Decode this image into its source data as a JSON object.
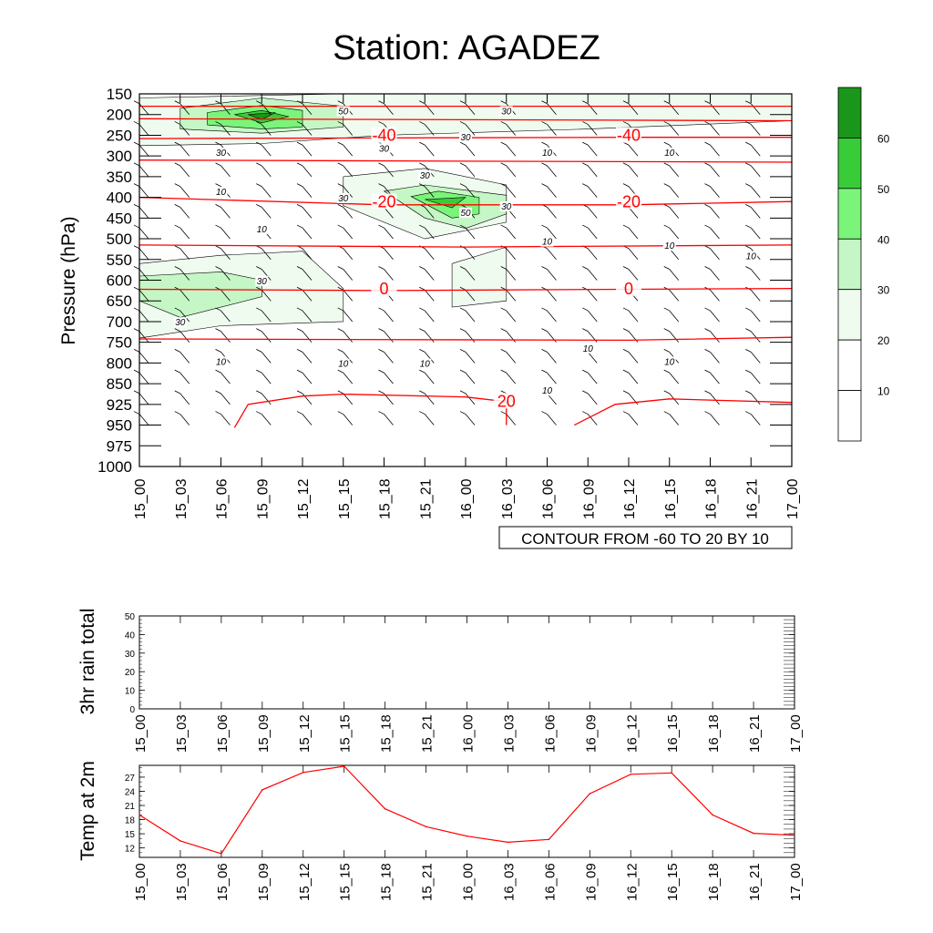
{
  "title": "Station: AGADEZ",
  "colors": {
    "shade": [
      "#ffffff",
      "#ffffff",
      "#effbef",
      "#c5f6c5",
      "#7af57a",
      "#39cc39",
      "#1a961a"
    ],
    "temp_line": "#ff0000",
    "contour_line": "#000000",
    "frame": "#000000"
  },
  "chart_data": [
    {
      "type": "contour",
      "title": "Station: AGADEZ",
      "ylabel": "Pressure (hPa)",
      "y_reversed": true,
      "y_ticks": [
        "150",
        "200",
        "250",
        "300",
        "350",
        "400",
        "450",
        "500",
        "550",
        "600",
        "650",
        "700",
        "750",
        "800",
        "850",
        "925",
        "950",
        "975",
        "1000"
      ],
      "x_ticks": [
        "15_00",
        "15_03",
        "15_06",
        "15_09",
        "15_12",
        "15_15",
        "15_18",
        "15_21",
        "16_00",
        "16_03",
        "16_06",
        "16_09",
        "16_12",
        "16_15",
        "16_18",
        "16_21",
        "17_00"
      ],
      "info_label": "CONTOUR FROM -60 TO 20 BY 10",
      "temperature_contour_labels": [
        {
          "value": "-40",
          "x": "15_18",
          "p": 255
        },
        {
          "value": "-40",
          "x": "16_12",
          "p": 255
        },
        {
          "value": "-20",
          "x": "15_18",
          "p": 415
        },
        {
          "value": "-20",
          "x": "16_12",
          "p": 415
        },
        {
          "value": "0",
          "x": "15_18",
          "p": 625
        },
        {
          "value": "0",
          "x": "16_12",
          "p": 625
        },
        {
          "value": "20",
          "x": "16_03",
          "p": 920
        }
      ],
      "temperature_isotherms": [
        {
          "value": -50,
          "points": [
            [
              "15_00",
              180
            ],
            [
              "17_00",
              180
            ]
          ]
        },
        {
          "value": -45,
          "points": [
            [
              "15_00",
              210
            ],
            [
              "17_00",
              215
            ]
          ]
        },
        {
          "value": -40,
          "points": [
            [
              "15_00",
              258
            ],
            [
              "16_12",
              255
            ],
            [
              "17_00",
              255
            ]
          ]
        },
        {
          "value": -30,
          "points": [
            [
              "15_00",
              310
            ],
            [
              "17_00",
              315
            ]
          ]
        },
        {
          "value": -20,
          "points": [
            [
              "15_00",
              400
            ],
            [
              "15_18",
              418
            ],
            [
              "16_12",
              418
            ],
            [
              "17_00",
              410
            ]
          ]
        },
        {
          "value": -10,
          "points": [
            [
              "15_00",
              515
            ],
            [
              "16_00",
              520
            ],
            [
              "17_00",
              515
            ]
          ]
        },
        {
          "value": 0,
          "points": [
            [
              "15_00",
              622
            ],
            [
              "15_18",
              625
            ],
            [
              "16_12",
              622
            ],
            [
              "17_00",
              620
            ]
          ]
        },
        {
          "value": 10,
          "points": [
            [
              "15_00",
              742
            ],
            [
              "16_12",
              745
            ],
            [
              "17_00",
              738
            ]
          ]
        }
      ],
      "isotherm_20_segments": [
        [
          [
            "15_07",
            953
          ],
          [
            "15_08",
            925
          ],
          [
            "15_12",
            895
          ],
          [
            "15_15",
            888
          ],
          [
            "16_00",
            898
          ],
          [
            "16_03",
            915
          ],
          [
            "16_03",
            950
          ]
        ],
        [
          [
            "16_08",
            950
          ],
          [
            "16_11",
            925
          ],
          [
            "16_15",
            905
          ],
          [
            "17_00",
            918
          ]
        ]
      ],
      "humidity_shading_levels": [
        10,
        20,
        30,
        40,
        50,
        60
      ],
      "humidity_contour_labels": [
        {
          "value": "50",
          "x": "15_15",
          "p": 195
        },
        {
          "value": "30",
          "x": "16_03",
          "p": 195
        },
        {
          "value": "30",
          "x": "16_00",
          "p": 258
        },
        {
          "value": "30",
          "x": "15_06",
          "p": 295
        },
        {
          "value": "30",
          "x": "15_18",
          "p": 285
        },
        {
          "value": "10",
          "x": "16_06",
          "p": 295
        },
        {
          "value": "10",
          "x": "16_15",
          "p": 295
        },
        {
          "value": "30",
          "x": "15_21",
          "p": 350
        },
        {
          "value": "10",
          "x": "15_06",
          "p": 390
        },
        {
          "value": "30",
          "x": "15_15",
          "p": 405
        },
        {
          "value": "50",
          "x": "16_00",
          "p": 440
        },
        {
          "value": "30",
          "x": "16_03",
          "p": 425
        },
        {
          "value": "10",
          "x": "15_09",
          "p": 480
        },
        {
          "value": "10",
          "x": "16_06",
          "p": 510
        },
        {
          "value": "10",
          "x": "16_15",
          "p": 520
        },
        {
          "value": "10",
          "x": "16_21",
          "p": 545
        },
        {
          "value": "30",
          "x": "15_09",
          "p": 605
        },
        {
          "value": "30",
          "x": "15_03",
          "p": 705
        },
        {
          "value": "10",
          "x": "16_09",
          "p": 768
        },
        {
          "value": "10",
          "x": "15_06",
          "p": 800
        },
        {
          "value": "10",
          "x": "15_15",
          "p": 805
        },
        {
          "value": "10",
          "x": "15_21",
          "p": 805
        },
        {
          "value": "10",
          "x": "16_15",
          "p": 800
        },
        {
          "value": "10",
          "x": "16_06",
          "p": 880
        }
      ],
      "humidity_regions": [
        {
          "level": 20,
          "points": [
            [
              "15_00",
              160
            ],
            [
              "15_15",
              150
            ],
            [
              "17_00",
              150
            ],
            [
              "17_00",
              215
            ],
            [
              "16_09",
              235
            ],
            [
              "15_18",
              250
            ],
            [
              "15_09",
              270
            ],
            [
              "15_00",
              275
            ]
          ]
        },
        {
          "level": 30,
          "points": [
            [
              "15_03",
              185
            ],
            [
              "15_09",
              160
            ],
            [
              "15_15",
              180
            ],
            [
              "15_15",
              230
            ],
            [
              "15_09",
              245
            ],
            [
              "15_03",
              235
            ]
          ]
        },
        {
          "level": 40,
          "points": [
            [
              "15_05",
              195
            ],
            [
              "15_09",
              178
            ],
            [
              "15_12",
              190
            ],
            [
              "15_12",
              230
            ],
            [
              "15_09",
              235
            ],
            [
              "15_05",
              225
            ]
          ]
        },
        {
          "level": 50,
          "points": [
            [
              "15_07",
              200
            ],
            [
              "15_09",
              190
            ],
            [
              "15_11",
              205
            ],
            [
              "15_09",
              220
            ]
          ]
        },
        {
          "level": 60,
          "points": [
            [
              "15_08",
              200
            ],
            [
              "15_10",
              195
            ],
            [
              "15_09",
              212
            ]
          ]
        },
        {
          "level": 20,
          "points": [
            [
              "15_15",
              350
            ],
            [
              "15_21",
              330
            ],
            [
              "16_03",
              370
            ],
            [
              "16_03",
              460
            ],
            [
              "15_21",
              500
            ],
            [
              "15_15",
              420
            ]
          ]
        },
        {
          "level": 30,
          "points": [
            [
              "15_18",
              385
            ],
            [
              "15_21",
              370
            ],
            [
              "16_03",
              395
            ],
            [
              "16_03",
              440
            ],
            [
              "16_00",
              475
            ],
            [
              "15_21",
              450
            ]
          ]
        },
        {
          "level": 40,
          "points": [
            [
              "15_20",
              398
            ],
            [
              "15_22",
              385
            ],
            [
              "16_01",
              400
            ],
            [
              "16_01",
              440
            ],
            [
              "15_23",
              450
            ]
          ]
        },
        {
          "level": 50,
          "points": [
            [
              "15_21",
              405
            ],
            [
              "16_00",
              400
            ],
            [
              "15_23",
              425
            ]
          ]
        },
        {
          "level": 20,
          "points": [
            [
              "15_00",
              560
            ],
            [
              "15_06",
              540
            ],
            [
              "15_12",
              530
            ],
            [
              "15_15",
              620
            ],
            [
              "15_15",
              700
            ],
            [
              "15_06",
              710
            ],
            [
              "15_00",
              740
            ]
          ]
        },
        {
          "level": 30,
          "points": [
            [
              "15_00",
              590
            ],
            [
              "15_06",
              580
            ],
            [
              "15_09",
              600
            ],
            [
              "15_09",
              640
            ],
            [
              "15_03",
              690
            ],
            [
              "15_00",
              650
            ]
          ]
        },
        {
          "level": 20,
          "points": [
            [
              "15_23",
              560
            ],
            [
              "16_03",
              520
            ],
            [
              "16_03",
              650
            ],
            [
              "15_23",
              665
            ]
          ]
        }
      ],
      "wind_barbs": "present"
    },
    {
      "type": "line",
      "ylabel": "3hr rain total",
      "ylim": [
        0,
        50
      ],
      "y_ticks": [
        "0",
        "10",
        "20",
        "30",
        "40",
        "50"
      ],
      "x_ticks": [
        "15_00",
        "15_03",
        "15_06",
        "15_09",
        "15_12",
        "15_15",
        "15_18",
        "15_21",
        "16_00",
        "16_03",
        "16_06",
        "16_09",
        "16_12",
        "16_15",
        "16_18",
        "16_21",
        "17_00"
      ],
      "values": []
    },
    {
      "type": "line",
      "ylabel": "Temp at 2m",
      "ylim": [
        10,
        29.5
      ],
      "y_ticks": [
        "12",
        "15",
        "18",
        "21",
        "24",
        "27"
      ],
      "x_ticks": [
        "15_00",
        "15_03",
        "15_06",
        "15_09",
        "15_12",
        "15_15",
        "15_18",
        "15_21",
        "16_00",
        "16_03",
        "16_06",
        "16_09",
        "16_12",
        "16_15",
        "16_18",
        "16_21",
        "17_00"
      ],
      "x": [
        "15_00",
        "15_03",
        "15_06",
        "15_09",
        "15_12",
        "15_15",
        "15_18",
        "15_21",
        "16_00",
        "16_03",
        "16_06",
        "16_09",
        "16_12",
        "16_15",
        "16_18",
        "16_21",
        "17_00"
      ],
      "values": [
        19.0,
        13.5,
        10.8,
        24.3,
        28.0,
        29.3,
        20.3,
        16.5,
        14.5,
        13.2,
        13.8,
        23.5,
        27.6,
        27.9,
        19.0,
        15.1,
        14.7
      ]
    }
  ],
  "legend": {
    "labels": [
      "60",
      "50",
      "40",
      "30",
      "20",
      "10"
    ]
  }
}
